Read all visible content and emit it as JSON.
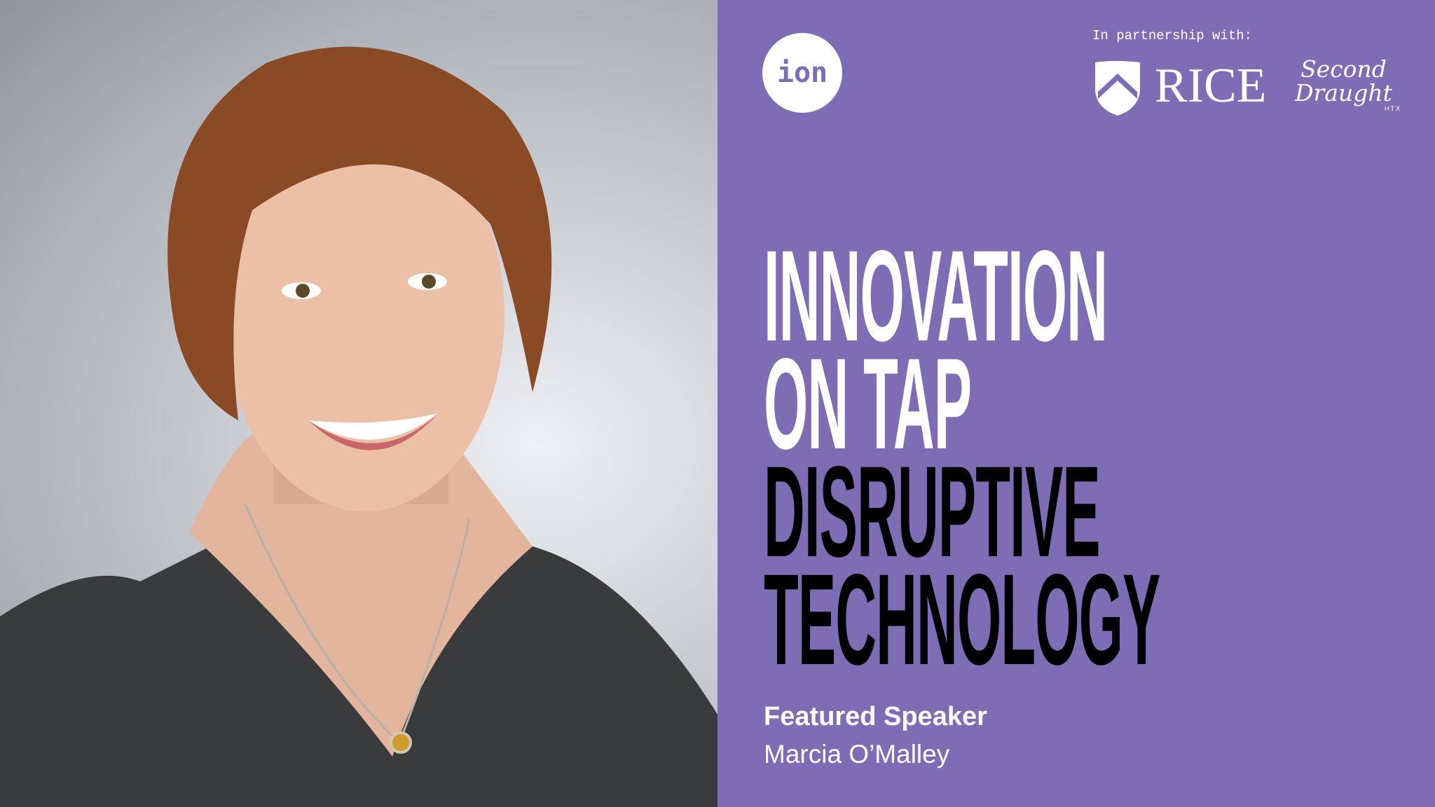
{
  "colors": {
    "panel": "#7e6db4",
    "headline_primary": "#ffffff",
    "headline_secondary": "#000000"
  },
  "logo": {
    "text": "ion"
  },
  "partners": {
    "label": "In partnership with:",
    "logos": [
      {
        "name": "RICE",
        "icon": "rice-shield-icon"
      },
      {
        "name": "Second Draught",
        "sub": "HTX"
      }
    ]
  },
  "headline": {
    "lines": [
      "INNOVATION",
      "ON TAP",
      "DISRUPTIVE",
      "TECHNOLOGY"
    ]
  },
  "speaker": {
    "label": "Featured Speaker",
    "name": "Marcia O’Malley"
  }
}
